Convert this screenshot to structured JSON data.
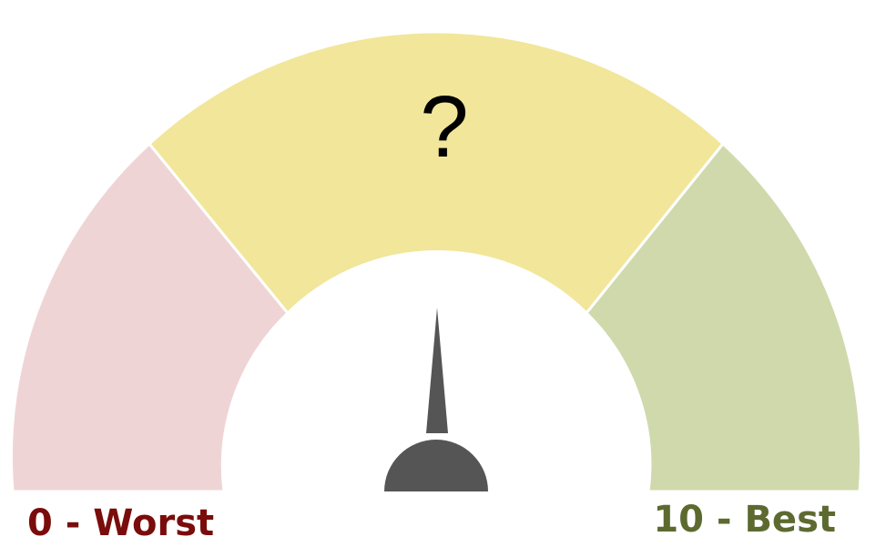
{
  "gauge": {
    "center_symbol": "?",
    "min_label": "0 - Worst",
    "max_label": "10 - Best",
    "min_value": 0,
    "max_value": 10,
    "colors": {
      "worst_zone": "#efd4d6",
      "middle_zone": "#f1e69a",
      "best_zone": "#d0d9ac",
      "needle": "#555555",
      "min_label": "#7a0c0c",
      "max_label": "#5c6a30"
    }
  }
}
